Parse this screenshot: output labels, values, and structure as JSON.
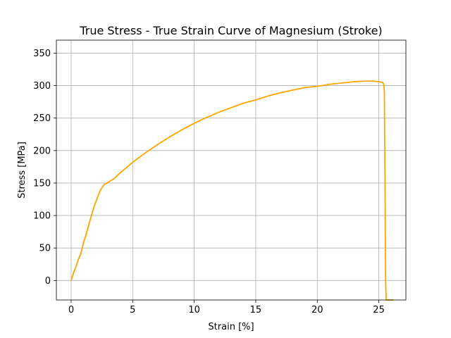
{
  "chart_data": {
    "type": "line",
    "title": "True Stress - True Strain Curve of Magnesium (Stroke)",
    "xlabel": "Strain [%]",
    "ylabel": "Stress [MPa]",
    "xlim": [
      -1.2,
      27.2
    ],
    "ylim": [
      -30,
      370
    ],
    "xticks": [
      0,
      5,
      10,
      15,
      20,
      25
    ],
    "yticks": [
      0,
      50,
      100,
      150,
      200,
      250,
      300,
      350
    ],
    "grid": true,
    "series": [
      {
        "color": "#ffa500",
        "x": [
          0,
          0.2,
          0.4,
          0.6,
          0.8,
          1.0,
          1.2,
          1.5,
          1.8,
          2.1,
          2.4,
          2.7,
          3.0,
          3.5,
          4.0,
          5.0,
          6.0,
          7.0,
          8.0,
          9.0,
          10.0,
          11.0,
          12.0,
          13.0,
          14.0,
          15.0,
          16.0,
          17.0,
          18.0,
          19.0,
          20.0,
          21.0,
          22.0,
          23.0,
          24.0,
          24.5,
          25.0,
          25.3,
          25.4,
          25.45,
          25.5,
          25.55,
          25.6,
          26.2
        ],
        "y": [
          0,
          12,
          22,
          33,
          42,
          58,
          70,
          90,
          110,
          126,
          140,
          148,
          151,
          157,
          166,
          182,
          196,
          209,
          221,
          232,
          242,
          251,
          259,
          266,
          273,
          278,
          284,
          289,
          293,
          297,
          299,
          302,
          304,
          306,
          307,
          307,
          306,
          305,
          302,
          290,
          150,
          0,
          -30,
          -30
        ]
      }
    ]
  }
}
